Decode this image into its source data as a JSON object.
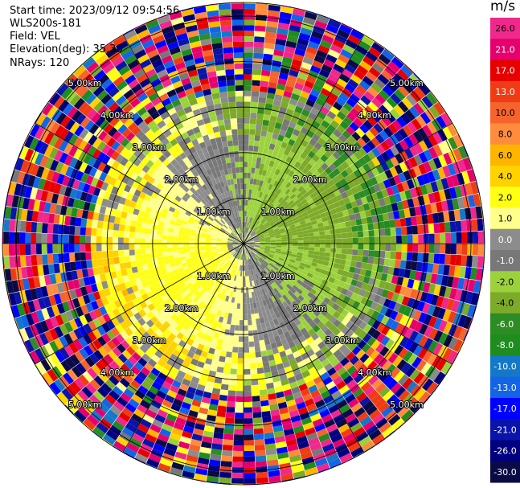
{
  "info": {
    "start_time": "Start time: 2023/09/12 09:54:56",
    "instrument": "WLS200s-181",
    "field": "Field: VEL",
    "elevation": "Elevation(deg): 35.30",
    "nrays": "NRays: 120"
  },
  "chart_data": {
    "type": "heatmap",
    "projection": "polar (PPI)",
    "field": "VEL",
    "unit": "m/s",
    "n_rays": 120,
    "range_rings_km": [
      1.0,
      2.0,
      3.0,
      4.0,
      5.0
    ],
    "ring_labels": [
      "1.00km",
      "2.00km",
      "3.00km",
      "4.00km",
      "5.00km"
    ],
    "max_range_km": 5.3,
    "colorbar": {
      "ticks": [
        "26.0",
        "21.0",
        "17.0",
        "13.0",
        "10.0",
        "8.0",
        "6.0",
        "4.0",
        "2.0",
        "1.0",
        "0.0",
        "-1.0",
        "-2.0",
        "-4.0",
        "-6.0",
        "-8.0",
        "-10.0",
        "-13.0",
        "-17.0",
        "-21.0",
        "-26.0",
        "-30.0"
      ],
      "colors": [
        "#f0288c",
        "#e6006e",
        "#e60000",
        "#f03c14",
        "#f5642d",
        "#ff8c3c",
        "#ffb400",
        "#ffd200",
        "#ffff14",
        "#ffff8c",
        "#8c8c8c",
        "#787878",
        "#9bd23c",
        "#7daa28",
        "#2d8c23",
        "#1e8c1e",
        "#1478c8",
        "#1464e6",
        "#0000ff",
        "#0a14aa",
        "#000080",
        "#0a0a46"
      ]
    },
    "velocity_pattern": {
      "inner_gate_count": 6,
      "inner_positive_sector_deg": [
        200,
        320
      ],
      "inner_negative_sector_deg": [
        20,
        160
      ],
      "noise_rings": [
        4.0,
        5.3
      ]
    }
  }
}
